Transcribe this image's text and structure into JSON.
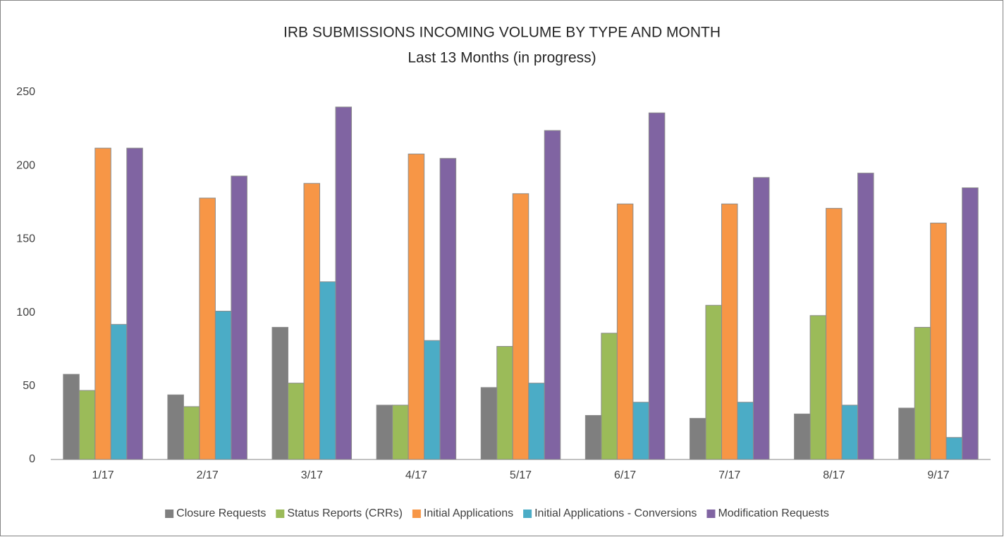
{
  "chart_data": {
    "type": "bar",
    "title": "IRB SUBMISSIONS INCOMING VOLUME BY TYPE AND MONTH",
    "subtitle": "Last 13 Months  (in progress)",
    "categories": [
      "1/17",
      "2/17",
      "3/17",
      "4/17",
      "5/17",
      "6/17",
      "7/17",
      "8/17",
      "9/17"
    ],
    "series": [
      {
        "name": "Closure Requests",
        "color": "#7f7f7f",
        "values": [
          58,
          44,
          90,
          37,
          49,
          30,
          28,
          31,
          35
        ]
      },
      {
        "name": "Status Reports (CRRs)",
        "color": "#9bbb59",
        "values": [
          47,
          36,
          52,
          37,
          77,
          86,
          105,
          98,
          90
        ]
      },
      {
        "name": "Initial Applications",
        "color": "#f79646",
        "values": [
          212,
          178,
          188,
          208,
          181,
          174,
          174,
          171,
          161
        ]
      },
      {
        "name": "Initial Applications - Conversions",
        "color": "#4bacc6",
        "values": [
          92,
          101,
          121,
          81,
          52,
          39,
          39,
          37,
          15
        ]
      },
      {
        "name": "Modification Requests",
        "color": "#8064a2",
        "values": [
          212,
          193,
          240,
          205,
          224,
          236,
          192,
          195,
          185
        ]
      }
    ],
    "ylim": [
      0,
      250
    ],
    "yticks": [
      0,
      50,
      100,
      150,
      200,
      250
    ],
    "grid": false,
    "legend": "bottom"
  }
}
